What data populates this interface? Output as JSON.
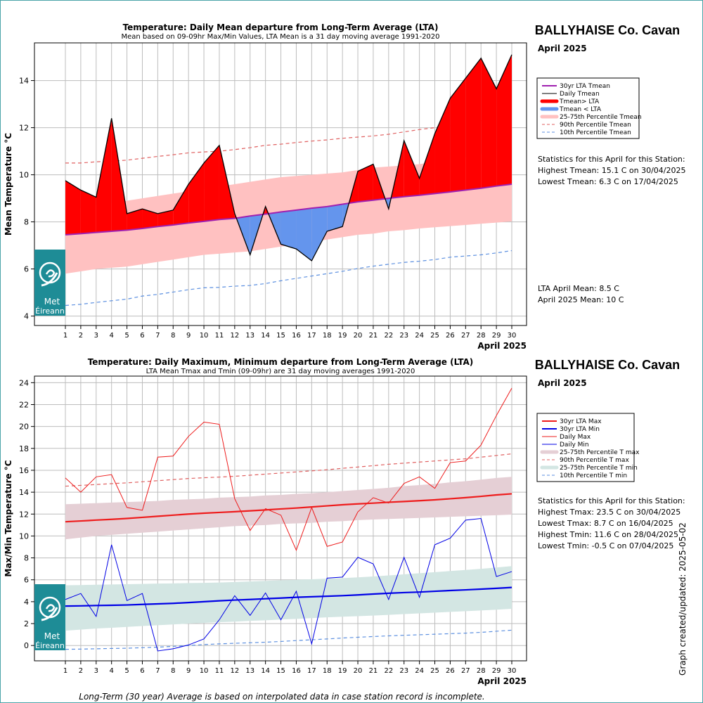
{
  "footnote": "Long-Term (30 year) Average is based on interpolated data in case station record is incomplete.",
  "created": "Graph created/updated:  2025-05-02",
  "logo": {
    "line1": "Met",
    "line2": "Éireann"
  },
  "colors": {
    "lta_tmean": "#a020b0",
    "daily_tmean": "#000000",
    "above": "#ff0000",
    "below": "#6495ed",
    "p25_75_tmean": "#ffc1c1",
    "p90": "#e06060",
    "p10": "#5b8fe0",
    "lta_max": "#ee1c1c",
    "lta_min": "#0000e6",
    "p25_75_tmax": "#e5cfd5",
    "p25_75_tmin": "#d3e6e3",
    "logo_bg": "#1e8c96"
  },
  "chart_data": [
    {
      "type": "line",
      "title": "Temperature: Daily Mean departure from Long-Term Average (LTA)",
      "subtitle": "Mean based on 09-09hr Max/Min Values, LTA Mean is a 31 day moving average 1991-2020",
      "station": "BALLYHAISE Co. Cavan",
      "month": "April 2025",
      "xlabel": "April 2025",
      "ylabel": "Mean Temperature °C",
      "ylim": [
        3.6,
        15.6
      ],
      "yticks": [
        4,
        6,
        8,
        10,
        12,
        14
      ],
      "x": [
        1,
        2,
        3,
        4,
        5,
        6,
        7,
        8,
        9,
        10,
        11,
        12,
        13,
        14,
        15,
        16,
        17,
        18,
        19,
        20,
        21,
        22,
        23,
        24,
        25,
        26,
        27,
        28,
        29,
        30
      ],
      "series": [
        {
          "name": "30yr LTA Tmean",
          "values": [
            7.45,
            7.5,
            7.55,
            7.6,
            7.65,
            7.72,
            7.8,
            7.87,
            7.95,
            8.02,
            8.1,
            8.15,
            8.25,
            8.33,
            8.42,
            8.5,
            8.58,
            8.65,
            8.75,
            8.85,
            8.92,
            9.0,
            9.07,
            9.13,
            9.2,
            9.27,
            9.35,
            9.43,
            9.52,
            9.6
          ]
        },
        {
          "name": "Daily Tmean",
          "values": [
            9.75,
            9.35,
            9.05,
            12.4,
            8.35,
            8.55,
            8.35,
            8.5,
            9.6,
            10.5,
            11.25,
            8.35,
            6.6,
            8.65,
            7.05,
            6.85,
            6.35,
            7.6,
            7.8,
            10.15,
            10.45,
            8.55,
            11.45,
            9.85,
            11.75,
            13.25,
            14.1,
            14.95,
            13.65,
            15.1
          ]
        },
        {
          "name": "25-75th Percentile Tmean",
          "lower": [
            5.8,
            5.9,
            6.0,
            6.05,
            6.1,
            6.2,
            6.3,
            6.4,
            6.5,
            6.6,
            6.65,
            6.7,
            6.75,
            6.85,
            6.95,
            7.05,
            7.15,
            7.25,
            7.35,
            7.45,
            7.5,
            7.6,
            7.65,
            7.72,
            7.77,
            7.82,
            7.87,
            7.92,
            7.97,
            8.02
          ],
          "upper": [
            8.5,
            8.6,
            8.7,
            8.8,
            8.9,
            9.0,
            9.1,
            9.2,
            9.3,
            9.4,
            9.5,
            9.6,
            9.7,
            9.8,
            9.9,
            9.95,
            10.0,
            10.05,
            10.1,
            10.2,
            10.3,
            10.35,
            10.4,
            10.45,
            10.55,
            10.65,
            10.75,
            10.9,
            11.05,
            11.15
          ]
        },
        {
          "name": "90th Percentile Tmean",
          "values": [
            10.5,
            10.5,
            10.55,
            10.58,
            10.62,
            10.7,
            10.78,
            10.85,
            10.93,
            10.97,
            11.0,
            11.07,
            11.15,
            11.25,
            11.3,
            11.37,
            11.43,
            11.48,
            11.55,
            11.6,
            11.65,
            11.72,
            11.82,
            11.92,
            12.0,
            12.08,
            12.18,
            12.3,
            12.43,
            12.58
          ]
        },
        {
          "name": "10th Percentile Tmean",
          "values": [
            4.45,
            4.5,
            4.58,
            4.65,
            4.72,
            4.85,
            4.92,
            5.02,
            5.12,
            5.2,
            5.22,
            5.27,
            5.3,
            5.38,
            5.5,
            5.6,
            5.7,
            5.8,
            5.9,
            6.02,
            6.12,
            6.2,
            6.28,
            6.33,
            6.4,
            6.5,
            6.55,
            6.6,
            6.68,
            6.78
          ]
        }
      ],
      "legend": [
        "30yr LTA Tmean",
        "Daily Tmean",
        "Tmean> LTA",
        "Tmean < LTA",
        "25-75th Percentile Tmean",
        "90th Percentile Tmean",
        "10th Percentile Tmean"
      ],
      "legend_position": "right",
      "stats": [
        "Statistics for this April for this Station:",
        "Highest Tmean: 15.1 C on 30/04/2025",
        "Lowest Tmean: 6.3 C on 17/04/2025"
      ],
      "means": [
        "LTA April Mean: 8.5 C",
        "April 2025 Mean: 10 C"
      ],
      "grid": true
    },
    {
      "type": "line",
      "title": "Temperature: Daily Maximum, Minimum departure from Long-Term Average (LTA)",
      "subtitle": "LTA Mean Tmax and Tmin (09-09hr) are 31 day moving averages 1991-2020",
      "station": "BALLYHAISE Co. Cavan",
      "month": "April 2025",
      "xlabel": "April 2025",
      "ylabel": "Max/Min Temperature °C",
      "ylim": [
        -1.4,
        24.6
      ],
      "yticks": [
        0,
        2,
        4,
        6,
        8,
        10,
        12,
        14,
        16,
        18,
        20,
        22,
        24
      ],
      "x": [
        1,
        2,
        3,
        4,
        5,
        6,
        7,
        8,
        9,
        10,
        11,
        12,
        13,
        14,
        15,
        16,
        17,
        18,
        19,
        20,
        21,
        22,
        23,
        24,
        25,
        26,
        27,
        28,
        29,
        30
      ],
      "series": [
        {
          "name": "30yr LTA Max",
          "values": [
            11.3,
            11.37,
            11.45,
            11.52,
            11.6,
            11.7,
            11.8,
            11.9,
            12.0,
            12.08,
            12.15,
            12.22,
            12.3,
            12.38,
            12.47,
            12.55,
            12.65,
            12.75,
            12.85,
            12.93,
            13.0,
            13.08,
            13.15,
            13.22,
            13.3,
            13.4,
            13.5,
            13.62,
            13.75,
            13.85
          ]
        },
        {
          "name": "30yr LTA Min",
          "values": [
            3.6,
            3.62,
            3.65,
            3.67,
            3.7,
            3.75,
            3.8,
            3.85,
            3.92,
            4.0,
            4.08,
            4.15,
            4.2,
            4.27,
            4.33,
            4.4,
            4.45,
            4.5,
            4.55,
            4.62,
            4.7,
            4.77,
            4.83,
            4.88,
            4.95,
            5.02,
            5.08,
            5.15,
            5.22,
            5.3
          ]
        },
        {
          "name": "Daily Max",
          "values": [
            15.3,
            14.0,
            15.4,
            15.6,
            12.6,
            12.35,
            17.2,
            17.3,
            19.1,
            20.4,
            20.2,
            13.4,
            10.5,
            12.5,
            11.9,
            8.7,
            12.6,
            9.05,
            9.45,
            12.2,
            13.5,
            13.0,
            14.8,
            15.4,
            14.35,
            16.7,
            16.85,
            18.3,
            21.0,
            23.5
          ]
        },
        {
          "name": "Daily Min",
          "values": [
            4.2,
            4.75,
            2.65,
            9.2,
            4.1,
            4.75,
            -0.5,
            -0.3,
            0.05,
            0.6,
            2.35,
            4.55,
            2.75,
            4.8,
            2.35,
            4.95,
            0.15,
            6.15,
            6.25,
            8.05,
            7.45,
            4.2,
            8.05,
            4.4,
            9.2,
            9.8,
            11.45,
            11.6,
            6.3,
            6.75
          ]
        },
        {
          "name": "25-75th Percentile T max",
          "lower": [
            9.7,
            9.85,
            10.0,
            10.1,
            10.2,
            10.3,
            10.4,
            10.5,
            10.6,
            10.7,
            10.8,
            10.9,
            10.95,
            11.0,
            11.1,
            11.15,
            11.2,
            11.3,
            11.35,
            11.45,
            11.5,
            11.55,
            11.6,
            11.65,
            11.7,
            11.75,
            11.8,
            11.85,
            11.9,
            11.95
          ],
          "upper": [
            12.9,
            12.95,
            13.0,
            13.05,
            13.1,
            13.15,
            13.2,
            13.3,
            13.35,
            13.4,
            13.5,
            13.55,
            13.6,
            13.7,
            13.75,
            13.85,
            13.9,
            14.0,
            14.1,
            14.2,
            14.3,
            14.4,
            14.55,
            14.65,
            14.75,
            14.9,
            15.0,
            15.15,
            15.3,
            15.4
          ]
        },
        {
          "name": "90th Percentile T max",
          "values": [
            14.55,
            14.62,
            14.7,
            14.78,
            14.85,
            14.95,
            15.05,
            15.15,
            15.25,
            15.32,
            15.38,
            15.45,
            15.55,
            15.65,
            15.75,
            15.85,
            15.95,
            16.05,
            16.18,
            16.3,
            16.42,
            16.55,
            16.65,
            16.75,
            16.85,
            16.95,
            17.05,
            17.2,
            17.35,
            17.5
          ]
        },
        {
          "name": "25-75th Percentile T min",
          "lower": [
            1.35,
            1.45,
            1.55,
            1.62,
            1.7,
            1.78,
            1.85,
            1.92,
            2.0,
            2.07,
            2.13,
            2.18,
            2.25,
            2.3,
            2.37,
            2.43,
            2.5,
            2.57,
            2.63,
            2.68,
            2.73,
            2.8,
            2.87,
            2.93,
            3.0,
            3.07,
            3.13,
            3.2,
            3.27,
            3.35
          ],
          "upper": [
            5.5,
            5.52,
            5.55,
            5.57,
            5.6,
            5.62,
            5.65,
            5.67,
            5.7,
            5.72,
            5.75,
            5.8,
            5.85,
            5.9,
            5.95,
            6.0,
            6.05,
            6.1,
            6.15,
            6.22,
            6.3,
            6.4,
            6.5,
            6.6,
            6.7,
            6.8,
            6.9,
            7.0,
            7.12,
            7.25
          ]
        },
        {
          "name": "10th Percentile T min",
          "values": [
            -0.35,
            -0.33,
            -0.3,
            -0.27,
            -0.25,
            -0.2,
            -0.15,
            -0.08,
            0.0,
            0.08,
            0.15,
            0.2,
            0.25,
            0.3,
            0.37,
            0.45,
            0.52,
            0.6,
            0.68,
            0.75,
            0.82,
            0.88,
            0.93,
            0.98,
            1.03,
            1.08,
            1.13,
            1.2,
            1.3,
            1.4
          ]
        }
      ],
      "legend": [
        "30yr LTA Max",
        "30yr LTA Min",
        "Daily Max",
        "Daily Min",
        "25-75th Percentile T max",
        "90th Percentile T max",
        "25-75th Percentile T min",
        "10th Percentile T min"
      ],
      "legend_position": "right",
      "stats": [
        "Statistics for this April for this Station:",
        "Highest Tmax: 23.5 C on 30/04/2025",
        "Lowest Tmax: 8.7 C on 16/04/2025",
        "Highest Tmin: 11.6 C on 28/04/2025",
        "Lowest Tmin: -0.5 C on 07/04/2025"
      ],
      "grid": true
    }
  ]
}
